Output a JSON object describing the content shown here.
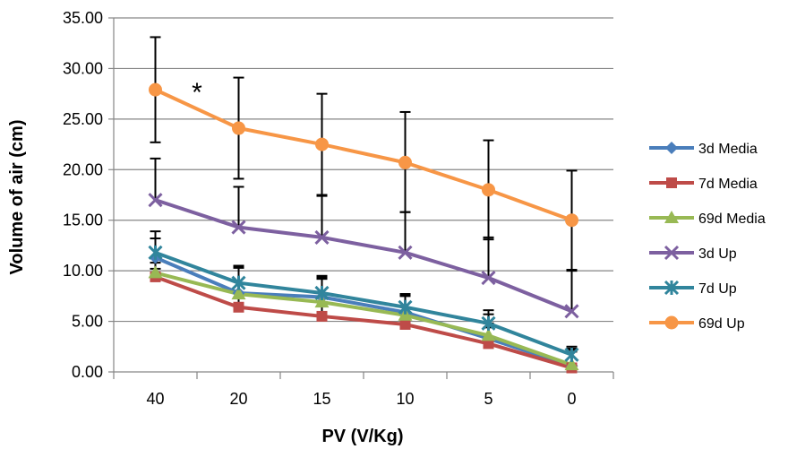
{
  "chart_data": {
    "type": "line",
    "title": "",
    "xlabel": "PV (V/Kg)",
    "ylabel": "Volume of air (cm)",
    "categories": [
      "40",
      "20",
      "15",
      "10",
      "5",
      "0"
    ],
    "ylim": [
      0,
      35
    ],
    "yticks": [
      "0.00",
      "5.00",
      "10.00",
      "15.00",
      "20.00",
      "25.00",
      "30.00",
      "35.00"
    ],
    "grid": "horizontal",
    "legend_position": "right",
    "annotation": "*",
    "series": [
      {
        "name": "3d Media",
        "color": "#4a7ebb",
        "marker": "diamond",
        "values": [
          11.3,
          7.8,
          7.4,
          5.9,
          3.3,
          0.6
        ],
        "error_upper": [
          13.2,
          10.3,
          9.2,
          7.6,
          4.8,
          2.2
        ]
      },
      {
        "name": "7d Media",
        "color": "#be4b48",
        "marker": "square",
        "values": [
          9.4,
          6.4,
          5.5,
          4.7,
          2.8,
          0.4
        ],
        "error_upper": [
          10.2,
          10.4,
          9.3,
          7.7,
          4.4,
          2.0
        ]
      },
      {
        "name": "69d Media",
        "color": "#98b954",
        "marker": "triangle",
        "values": [
          9.8,
          7.7,
          6.9,
          5.6,
          3.6,
          0.7
        ],
        "error_upper": [
          10.8,
          10.3,
          9.5,
          7.5,
          5.7,
          2.3
        ]
      },
      {
        "name": "3d Up",
        "color": "#7d60a0",
        "marker": "x",
        "values": [
          17.0,
          14.3,
          13.3,
          11.8,
          9.3,
          6.0
        ],
        "error_upper": [
          21.1,
          18.3,
          17.4,
          15.8,
          13.3,
          10.0
        ]
      },
      {
        "name": "7d Up",
        "color": "#31859c",
        "marker": "star",
        "values": [
          11.8,
          8.8,
          7.8,
          6.4,
          4.8,
          1.7
        ],
        "error_upper": [
          13.9,
          10.5,
          9.4,
          7.7,
          6.1,
          2.5
        ]
      },
      {
        "name": "69d Up",
        "color": "#f79646",
        "marker": "circle",
        "values": [
          27.9,
          24.1,
          22.5,
          20.7,
          18.0,
          15.0
        ],
        "error_upper": [
          33.1,
          29.1,
          27.5,
          25.7,
          22.9,
          19.9
        ],
        "error_lower": [
          22.7,
          19.1,
          17.5,
          15.8,
          13.1,
          10.1
        ]
      }
    ]
  }
}
